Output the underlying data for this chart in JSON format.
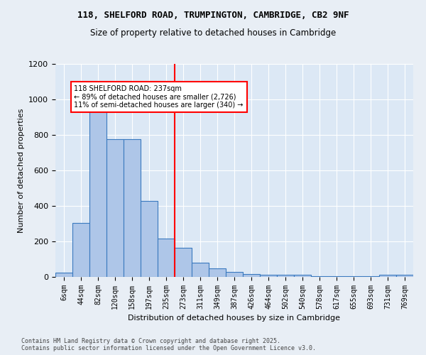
{
  "title1": "118, SHELFORD ROAD, TRUMPINGTON, CAMBRIDGE, CB2 9NF",
  "title2": "Size of property relative to detached houses in Cambridge",
  "xlabel": "Distribution of detached houses by size in Cambridge",
  "ylabel": "Number of detached properties",
  "categories": [
    "6sqm",
    "44sqm",
    "82sqm",
    "120sqm",
    "158sqm",
    "197sqm",
    "235sqm",
    "273sqm",
    "311sqm",
    "349sqm",
    "387sqm",
    "426sqm",
    "464sqm",
    "502sqm",
    "540sqm",
    "578sqm",
    "617sqm",
    "655sqm",
    "693sqm",
    "731sqm",
    "769sqm"
  ],
  "values": [
    25,
    305,
    980,
    775,
    775,
    430,
    215,
    165,
    80,
    50,
    30,
    18,
    12,
    12,
    12,
    5,
    5,
    5,
    5,
    12,
    12
  ],
  "bar_color": "#aec6e8",
  "bar_edge_color": "#3a7abf",
  "vline_color": "red",
  "vline_pos": 6.5,
  "annotation_text": "118 SHELFORD ROAD: 237sqm\n← 89% of detached houses are smaller (2,726)\n11% of semi-detached houses are larger (340) →",
  "ylim": [
    0,
    1200
  ],
  "yticks": [
    0,
    200,
    400,
    600,
    800,
    1000,
    1200
  ],
  "footer1": "Contains HM Land Registry data © Crown copyright and database right 2025.",
  "footer2": "Contains public sector information licensed under the Open Government Licence v3.0.",
  "bg_color": "#e8eef5",
  "plot_bg_color": "#dce8f5"
}
